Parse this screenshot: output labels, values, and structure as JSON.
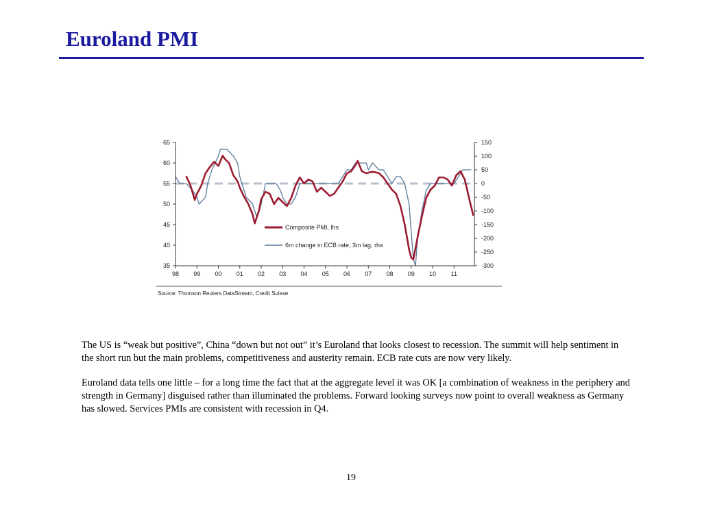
{
  "slide": {
    "title": "Euroland PMI",
    "page_number": "19",
    "paragraphs": [
      "The US is “weak but positive”, China “down but not out” it’s Euroland that looks closest to recession. The summit will help sentiment in the short run but the main problems, competitiveness and austerity remain. ECB rate cuts are now very likely.",
      "Euroland data tells one little – for a long time the fact that at the aggregate level it was OK [a combination of weakness in the periphery and strength in Germany] disguised rather than illuminated the problems. Forward looking surveys now point to overall weakness as Germany has slowed. Services PMIs are consistent with recession in Q4."
    ]
  },
  "chart_data": {
    "type": "line",
    "source": "Source: Thomson Reuters DataStream, Credit Suisse",
    "legend_position": "center",
    "grid": false,
    "x_tick_labels": [
      "98",
      "99",
      "00",
      "01",
      "02",
      "03",
      "04",
      "05",
      "06",
      "07",
      "08",
      "09",
      "10",
      "11"
    ],
    "x_tick_years": [
      1998,
      1999,
      2000,
      2001,
      2002,
      2003,
      2004,
      2005,
      2006,
      2007,
      2008,
      2009,
      2010,
      2011
    ],
    "xlim": [
      1998,
      2011.95
    ],
    "y_left": {
      "lim": [
        35,
        65
      ],
      "ticks": [
        35,
        40,
        45,
        50,
        55,
        60,
        65
      ]
    },
    "y_right": {
      "lim": [
        -300,
        150
      ],
      "ticks": [
        150,
        100,
        50,
        0,
        -50,
        -100,
        -150,
        -200,
        -250,
        -300
      ]
    },
    "reference_line": {
      "axis": "right",
      "value": 0,
      "color": "#b8c0cc"
    },
    "series": [
      {
        "name": "Composite PMI, lhs",
        "axis": "left",
        "color": "#9b1b30",
        "x": [
          1998.5,
          1998.7,
          1998.9,
          1999.0,
          1999.2,
          1999.4,
          1999.6,
          1999.8,
          2000.0,
          2000.2,
          2000.3,
          2000.5,
          2000.7,
          2000.9,
          2001.0,
          2001.2,
          2001.4,
          2001.6,
          2001.7,
          2001.9,
          2002.0,
          2002.2,
          2002.4,
          2002.6,
          2002.8,
          2003.0,
          2003.2,
          2003.4,
          2003.6,
          2003.8,
          2004.0,
          2004.2,
          2004.4,
          2004.6,
          2004.8,
          2005.0,
          2005.2,
          2005.4,
          2005.6,
          2005.8,
          2006.0,
          2006.2,
          2006.4,
          2006.5,
          2006.7,
          2006.9,
          2007.1,
          2007.3,
          2007.5,
          2007.7,
          2007.9,
          2008.1,
          2008.3,
          2008.5,
          2008.7,
          2008.9,
          2009.0,
          2009.1,
          2009.3,
          2009.5,
          2009.7,
          2009.9,
          2010.1,
          2010.3,
          2010.5,
          2010.7,
          2010.9,
          2011.1,
          2011.3,
          2011.5,
          2011.7,
          2011.9
        ],
        "y": [
          56.8,
          54.5,
          51.0,
          52.5,
          54.5,
          57.5,
          59.0,
          60.3,
          59.3,
          61.8,
          61.0,
          60.0,
          57.0,
          55.5,
          54.0,
          51.8,
          50.0,
          47.5,
          45.3,
          48.5,
          51.2,
          53.0,
          52.5,
          50.0,
          51.5,
          50.5,
          49.5,
          51.5,
          54.5,
          56.5,
          55.0,
          56.0,
          55.5,
          53.0,
          54.0,
          53.0,
          52.0,
          52.5,
          54.0,
          55.5,
          57.5,
          58.0,
          59.5,
          60.5,
          58.0,
          57.5,
          57.8,
          57.8,
          57.5,
          56.5,
          55.0,
          53.5,
          52.5,
          49.5,
          45.0,
          39.0,
          37.0,
          36.5,
          42.0,
          47.0,
          51.5,
          53.5,
          54.5,
          56.5,
          56.5,
          56.0,
          54.5,
          57.0,
          58.0,
          56.0,
          51.5,
          47.2
        ]
      },
      {
        "name": "6m change in ECB rate, 3m lag, rhs",
        "axis": "right",
        "color": "#5a7a9a",
        "x": [
          1998.0,
          1998.2,
          1998.5,
          1998.8,
          1999.0,
          1999.1,
          1999.4,
          1999.5,
          1999.7,
          2000.0,
          2000.1,
          2000.4,
          2000.7,
          2000.9,
          2001.0,
          2001.3,
          2001.6,
          2001.8,
          2002.0,
          2002.2,
          2002.5,
          2002.7,
          2002.9,
          2003.0,
          2003.2,
          2003.4,
          2003.6,
          2003.8,
          2004.0,
          2004.2,
          2004.4,
          2004.6,
          2004.8,
          2005.0,
          2005.3,
          2005.6,
          2005.8,
          2006.0,
          2006.2,
          2006.4,
          2006.6,
          2006.9,
          2007.0,
          2007.2,
          2007.5,
          2007.7,
          2007.9,
          2008.1,
          2008.3,
          2008.5,
          2008.7,
          2008.9,
          2009.0,
          2009.1,
          2009.2,
          2009.3,
          2009.5,
          2009.7,
          2009.9,
          2010.0,
          2010.2,
          2010.4,
          2010.6,
          2010.8,
          2011.0,
          2011.2,
          2011.4,
          2011.6,
          2011.8
        ],
        "y": [
          25,
          0,
          0,
          -25,
          -50,
          -75,
          -50,
          0,
          50,
          100,
          125,
          125,
          100,
          75,
          25,
          -50,
          -75,
          -125,
          -75,
          0,
          0,
          0,
          -25,
          -50,
          -75,
          -75,
          -50,
          0,
          0,
          0,
          0,
          0,
          0,
          0,
          0,
          0,
          25,
          50,
          50,
          75,
          75,
          75,
          50,
          75,
          50,
          50,
          25,
          0,
          25,
          25,
          0,
          -75,
          -175,
          -275,
          -300,
          -200,
          -100,
          -25,
          0,
          0,
          0,
          0,
          0,
          0,
          0,
          25,
          50,
          50,
          50
        ]
      }
    ]
  }
}
